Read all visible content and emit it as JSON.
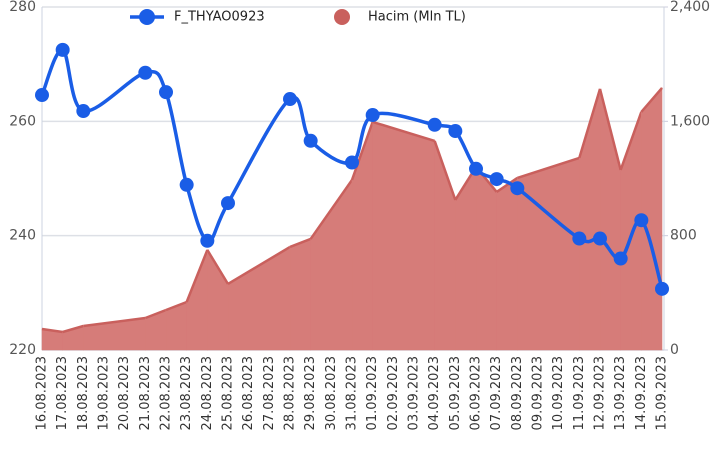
{
  "chart_data": {
    "type": "line",
    "categories": [
      "16.08.2023",
      "17.08.2023",
      "18.08.2023",
      "19.08.2023",
      "20.08.2023",
      "21.08.2023",
      "22.08.2023",
      "23.08.2023",
      "24.08.2023",
      "25.08.2023",
      "26.08.2023",
      "27.08.2023",
      "28.08.2023",
      "29.08.2023",
      "30.08.2023",
      "31.08.2023",
      "01.09.2023",
      "02.09.2023",
      "03.09.2023",
      "04.09.2023",
      "05.09.2023",
      "06.09.2023",
      "07.09.2023",
      "08.09.2023",
      "09.09.2023",
      "10.09.2023",
      "11.09.2023",
      "12.09.2023",
      "13.09.2023",
      "14.09.2023",
      "15.09.2023"
    ],
    "series": [
      {
        "name": "F_THYAO0923",
        "type": "line",
        "color": "#1a5de6",
        "values": [
          264.6,
          272.5,
          261.8,
          null,
          null,
          268.5,
          265.1,
          248.9,
          239.1,
          245.7,
          null,
          null,
          263.9,
          256.6,
          null,
          252.8,
          261.1,
          null,
          null,
          259.4,
          258.3,
          251.7,
          249.9,
          248.3,
          null,
          null,
          239.5,
          239.5,
          236.0,
          242.7,
          230.7
        ]
      },
      {
        "name": "Hacim (Mln TL)",
        "type": "area",
        "axis": "y2",
        "color": "#c9605d",
        "values": [
          147,
          126,
          168,
          null,
          null,
          224,
          280,
          336,
          700,
          462,
          null,
          null,
          721,
          777,
          null,
          1190,
          1596,
          null,
          null,
          1463,
          1050,
          1281,
          1106,
          1204,
          null,
          null,
          1344,
          1827,
          1260,
          1666,
          1834
        ]
      }
    ],
    "ylim": [
      220,
      280
    ],
    "yticks": [
      220,
      240,
      260,
      280
    ],
    "y2lim": [
      0,
      2400
    ],
    "y2ticks": [
      0,
      800,
      {
        "value": 1600,
        "label": "1,600"
      },
      {
        "value": 2400,
        "label": "2,400"
      }
    ],
    "grid": true,
    "legend": "top"
  }
}
